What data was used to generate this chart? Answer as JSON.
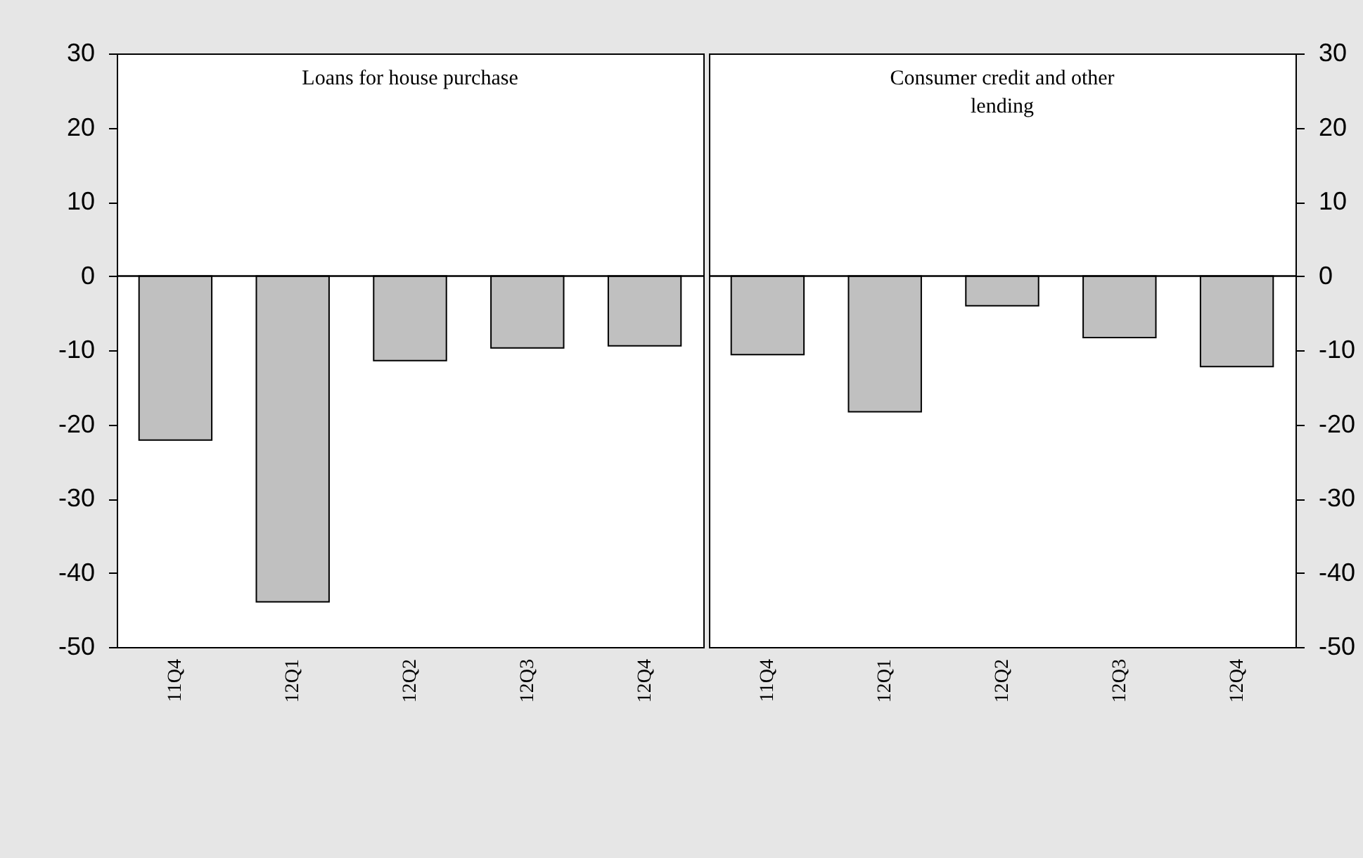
{
  "chart_data": [
    {
      "type": "bar",
      "title": "Loans for house purchase",
      "categories": [
        "11Q4",
        "12Q1",
        "12Q2",
        "12Q3",
        "12Q4"
      ],
      "values": [
        -22.1,
        -43.9,
        -11.4,
        -9.7,
        -9.4
      ],
      "color": "#c0c0c0",
      "ylim": [
        -50,
        30
      ],
      "yticks": [
        -50,
        -40,
        -30,
        -20,
        -10,
        0,
        10,
        20,
        30
      ]
    },
    {
      "type": "bar",
      "title": "Consumer credit and other lending",
      "categories": [
        "11Q4",
        "12Q1",
        "12Q2",
        "12Q3",
        "12Q4"
      ],
      "series": [
        {
          "color": "#c0c0c0",
          "axis": "y2",
          "values": [
            -10.6,
            -18.3,
            -4.0,
            -8.3,
            -12.2
          ]
        }
      ],
      "y2lim": [
        -50,
        30
      ],
      "y2ticks": [
        -50,
        -40,
        -30,
        -20,
        -10,
        0,
        10,
        20,
        30
      ]
    }
  ]
}
